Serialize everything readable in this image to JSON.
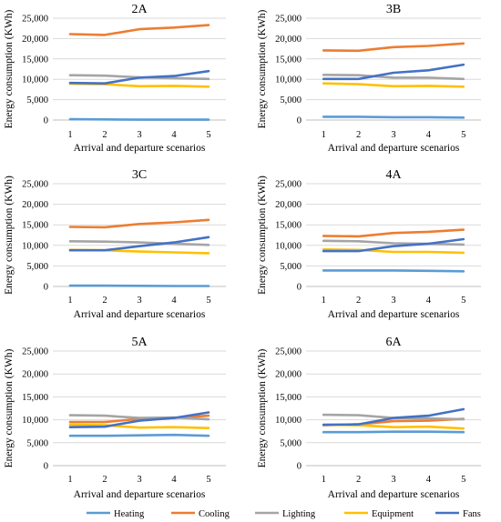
{
  "chart_data": {
    "type": "line",
    "x": [
      1,
      2,
      3,
      4,
      5
    ],
    "xlabel": "Arrival and departure scenarios",
    "ylabel": "Energy consumption (KWh)",
    "ylim": [
      0,
      25000
    ],
    "yticks": [
      0,
      5000,
      10000,
      15000,
      20000,
      25000
    ],
    "ytick_labels": [
      "0",
      "5,000",
      "10,000",
      "15,000",
      "20,000",
      "25,000"
    ],
    "grid": "horizontal",
    "legend": "bottom",
    "series_style": [
      {
        "name": "Heating",
        "color": "#5b9bd5"
      },
      {
        "name": "Cooling",
        "color": "#ed7d31"
      },
      {
        "name": "Lighting",
        "color": "#a5a5a5"
      },
      {
        "name": "Equipment",
        "color": "#ffc000"
      },
      {
        "name": "Fans",
        "color": "#4472c4"
      }
    ],
    "panels": [
      {
        "title": "2A",
        "series": [
          {
            "name": "Heating",
            "values": [
              200,
              150,
              100,
              100,
              100
            ]
          },
          {
            "name": "Cooling",
            "values": [
              21100,
              20900,
              22300,
              22700,
              23300
            ]
          },
          {
            "name": "Lighting",
            "values": [
              11000,
              10900,
              10500,
              10300,
              10100
            ]
          },
          {
            "name": "Equipment",
            "values": [
              8900,
              8800,
              8300,
              8400,
              8200
            ]
          },
          {
            "name": "Fans",
            "values": [
              9100,
              9000,
              10400,
              10800,
              12000
            ]
          }
        ]
      },
      {
        "title": "3B",
        "series": [
          {
            "name": "Heating",
            "values": [
              800,
              800,
              700,
              700,
              600
            ]
          },
          {
            "name": "Cooling",
            "values": [
              17100,
              17000,
              17900,
              18200,
              18800
            ]
          },
          {
            "name": "Lighting",
            "values": [
              11100,
              11000,
              10400,
              10400,
              10100
            ]
          },
          {
            "name": "Equipment",
            "values": [
              9000,
              8800,
              8300,
              8400,
              8200
            ]
          },
          {
            "name": "Fans",
            "values": [
              10100,
              10100,
              11600,
              12200,
              13600
            ]
          }
        ]
      },
      {
        "title": "3C",
        "series": [
          {
            "name": "Heating",
            "values": [
              200,
              200,
              150,
              100,
              100
            ]
          },
          {
            "name": "Cooling",
            "values": [
              14500,
              14400,
              15200,
              15600,
              16200
            ]
          },
          {
            "name": "Lighting",
            "values": [
              11000,
              10900,
              10700,
              10400,
              10100
            ]
          },
          {
            "name": "Equipment",
            "values": [
              8900,
              8800,
              8500,
              8300,
              8100
            ]
          },
          {
            "name": "Fans",
            "values": [
              8800,
              8800,
              9800,
              10700,
              12000
            ]
          }
        ]
      },
      {
        "title": "4A",
        "series": [
          {
            "name": "Heating",
            "values": [
              3900,
              3900,
              3900,
              3800,
              3700
            ]
          },
          {
            "name": "Cooling",
            "values": [
              12300,
              12200,
              13000,
              13300,
              13800
            ]
          },
          {
            "name": "Lighting",
            "values": [
              11100,
              11000,
              10500,
              10400,
              10200
            ]
          },
          {
            "name": "Equipment",
            "values": [
              9000,
              8900,
              8400,
              8400,
              8200
            ]
          },
          {
            "name": "Fans",
            "values": [
              8600,
              8600,
              9800,
              10400,
              11500
            ]
          }
        ]
      },
      {
        "title": "5A",
        "series": [
          {
            "name": "Heating",
            "values": [
              6500,
              6500,
              6600,
              6700,
              6500
            ]
          },
          {
            "name": "Cooling",
            "values": [
              9500,
              9500,
              10200,
              10400,
              10900
            ]
          },
          {
            "name": "Lighting",
            "values": [
              11000,
              10900,
              10400,
              10500,
              10100
            ]
          },
          {
            "name": "Equipment",
            "values": [
              8900,
              8800,
              8300,
              8400,
              8200
            ]
          },
          {
            "name": "Fans",
            "values": [
              8400,
              8500,
              9800,
              10400,
              11600
            ]
          }
        ]
      },
      {
        "title": "6A",
        "series": [
          {
            "name": "Heating",
            "values": [
              7300,
              7300,
              7400,
              7400,
              7300
            ]
          },
          {
            "name": "Cooling",
            "values": [
              8800,
              9000,
              9700,
              9800,
              10200
            ]
          },
          {
            "name": "Lighting",
            "values": [
              11100,
              11000,
              10400,
              10300,
              10100
            ]
          },
          {
            "name": "Equipment",
            "values": [
              8900,
              8800,
              8400,
              8500,
              8100
            ]
          },
          {
            "name": "Fans",
            "values": [
              8900,
              9000,
              10400,
              10900,
              12300
            ]
          }
        ]
      }
    ]
  }
}
